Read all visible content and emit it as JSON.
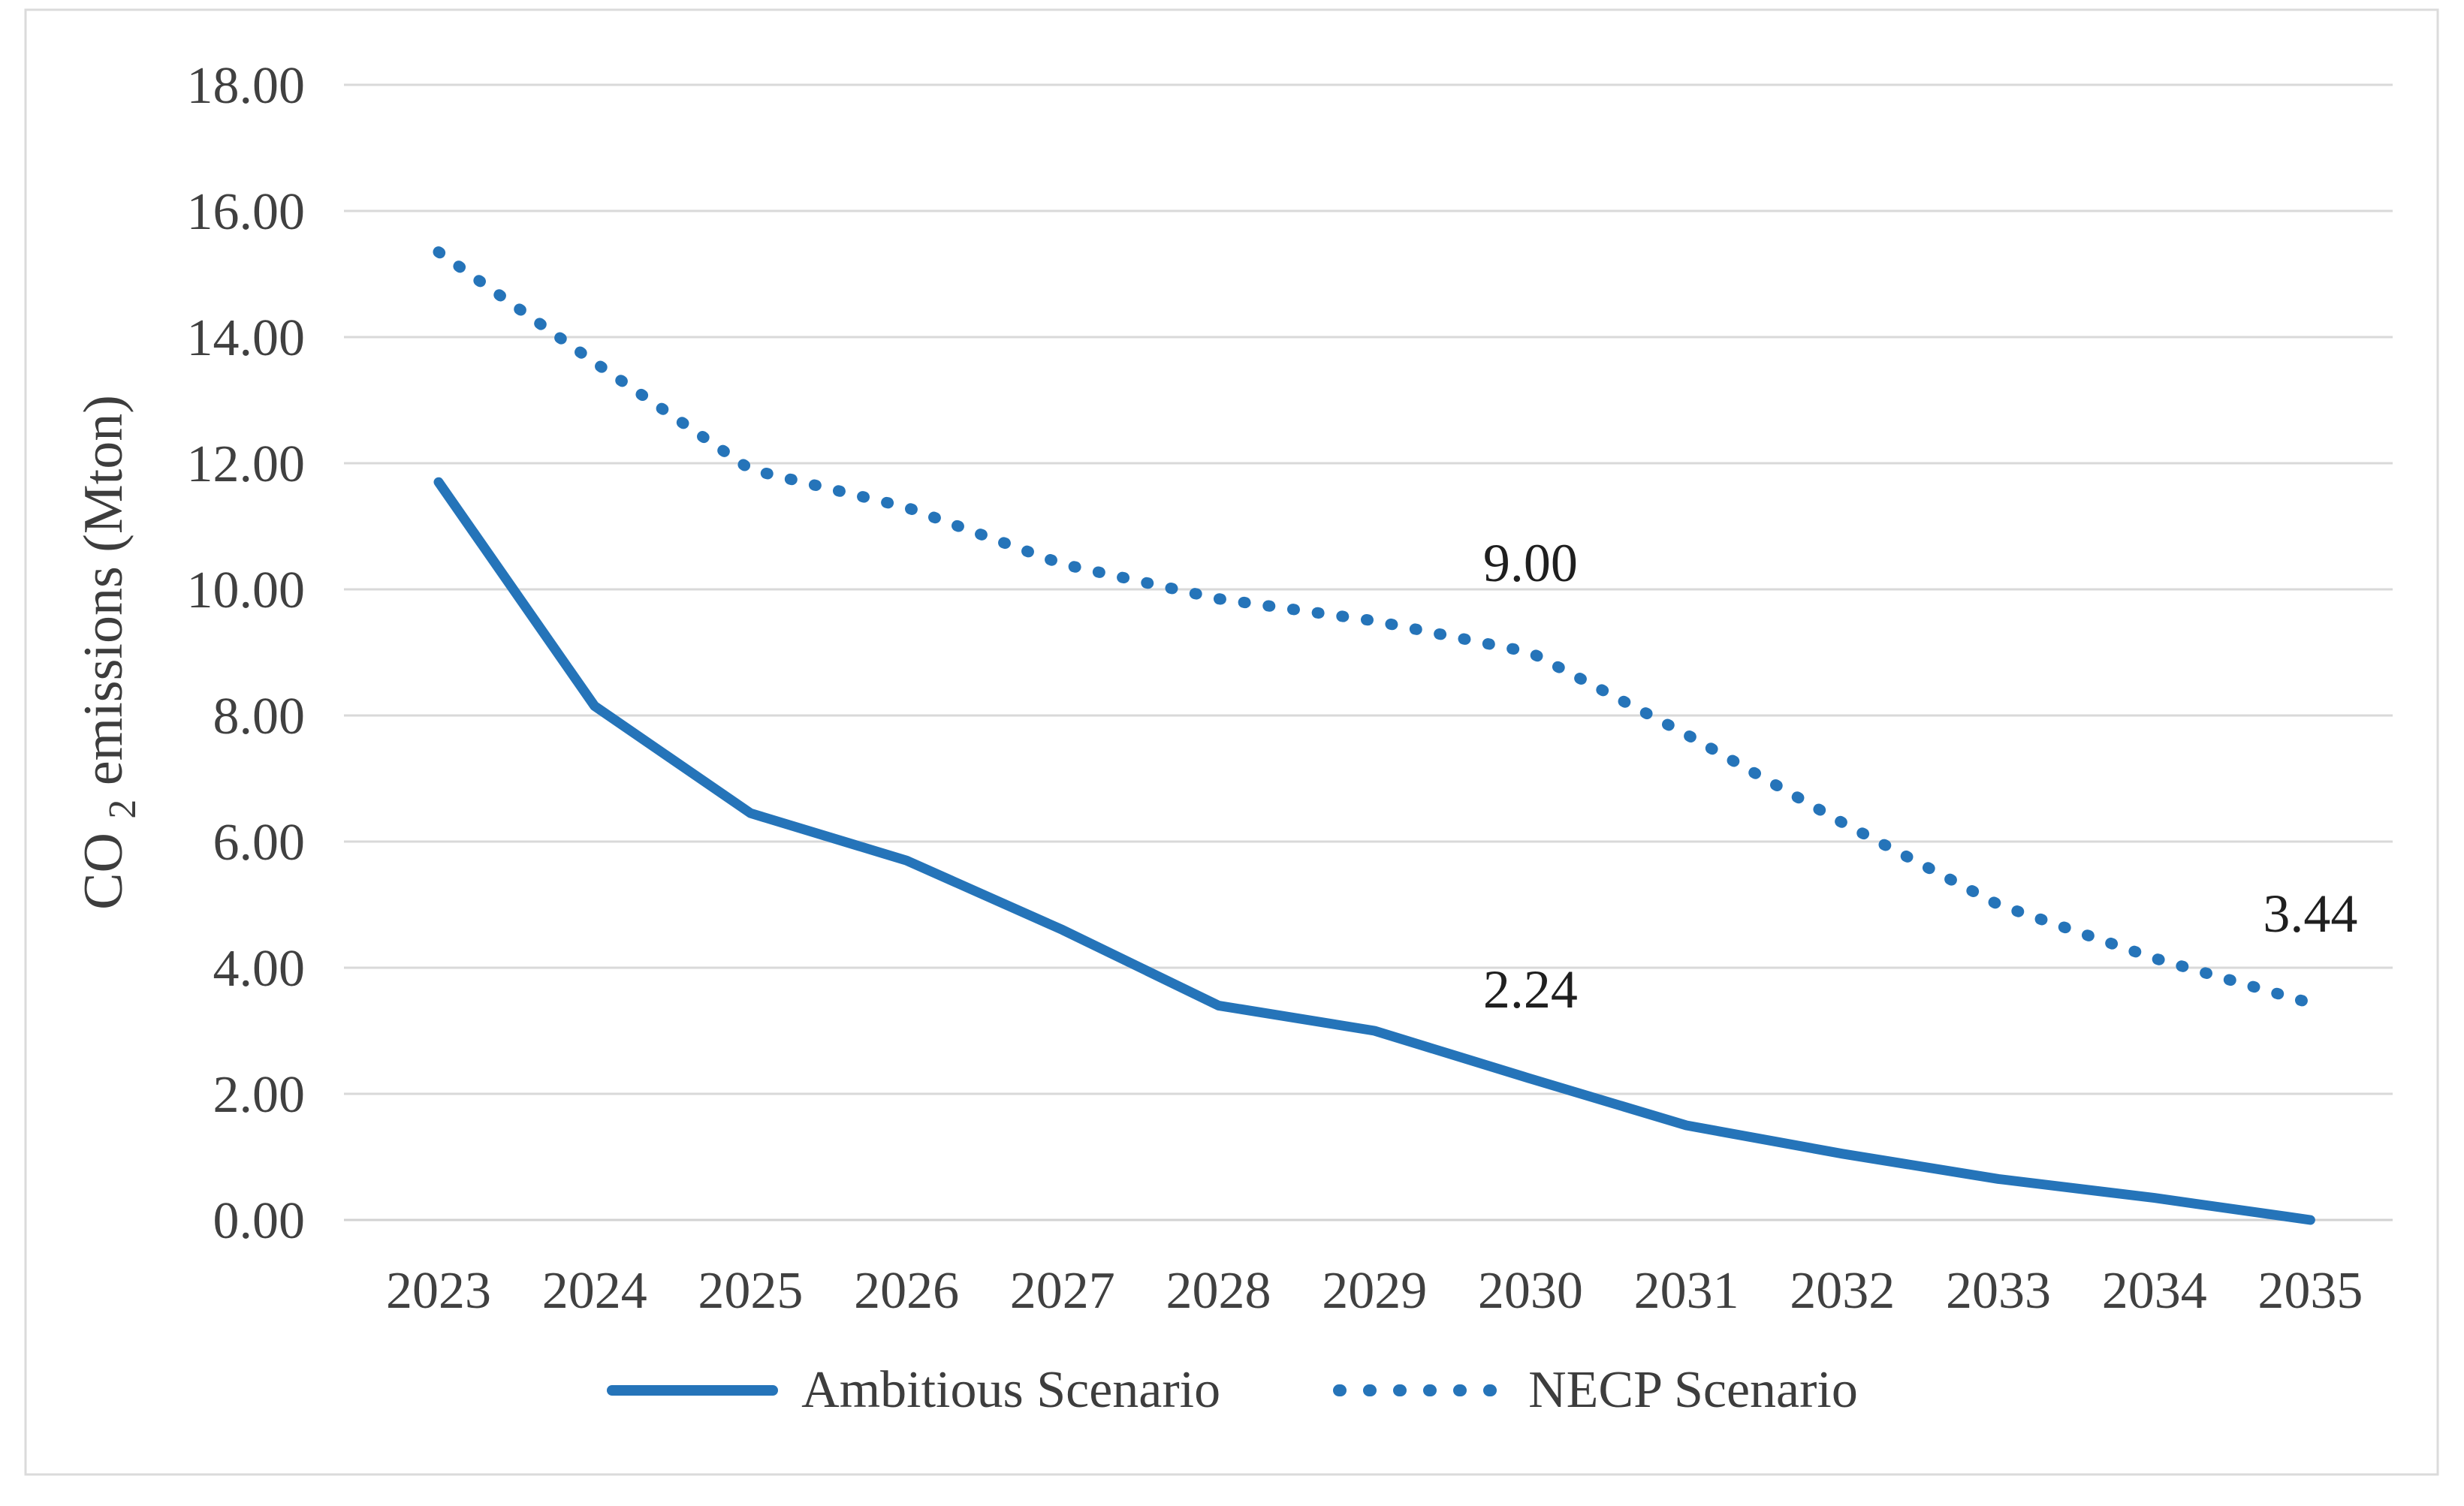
{
  "chart_data": {
    "type": "line",
    "title": "",
    "xlabel": "",
    "ylabel": {
      "prefix": "CO",
      "sub": "2",
      "suffix": " emissions (Mton)"
    },
    "ylim": [
      0,
      18
    ],
    "ytick_step": 2,
    "y_tick_labels": [
      "18.00",
      "16.00",
      "14.00",
      "12.00",
      "10.00",
      "8.00",
      "6.00",
      "4.00",
      "2.00",
      "0.00"
    ],
    "grid": true,
    "legend_position": "bottom",
    "categories": [
      "2023",
      "2024",
      "2025",
      "2026",
      "2027",
      "2028",
      "2029",
      "2030",
      "2031",
      "2032",
      "2033",
      "2034",
      "2035"
    ],
    "series": [
      {
        "name": "Ambitious Scenario",
        "style": "solid",
        "color": "#2574B9",
        "values": [
          11.7,
          8.15,
          6.45,
          5.7,
          4.6,
          3.4,
          3.0,
          2.24,
          1.5,
          1.05,
          0.65,
          0.35,
          0.0
        ]
      },
      {
        "name": "NECP Scenario",
        "style": "dotted",
        "color": "#2574B9",
        "values": [
          15.35,
          13.6,
          11.9,
          11.3,
          10.4,
          9.85,
          9.5,
          9.0,
          7.7,
          6.3,
          5.0,
          4.15,
          3.44
        ]
      }
    ],
    "data_labels": [
      {
        "series_index": 1,
        "category_index": 7,
        "text": "9.00"
      },
      {
        "series_index": 0,
        "category_index": 7,
        "text": "2.24"
      },
      {
        "series_index": 1,
        "category_index": 12,
        "text": "3.44"
      }
    ]
  },
  "style": {
    "background": "#FFFFFF",
    "border_color": "#DBDBDB",
    "gridline_color": "#D9D9D9",
    "axis_line_color": "#D2D2D2",
    "tick_text_color": "#404040",
    "data_label_color": "#1F1F1F"
  }
}
